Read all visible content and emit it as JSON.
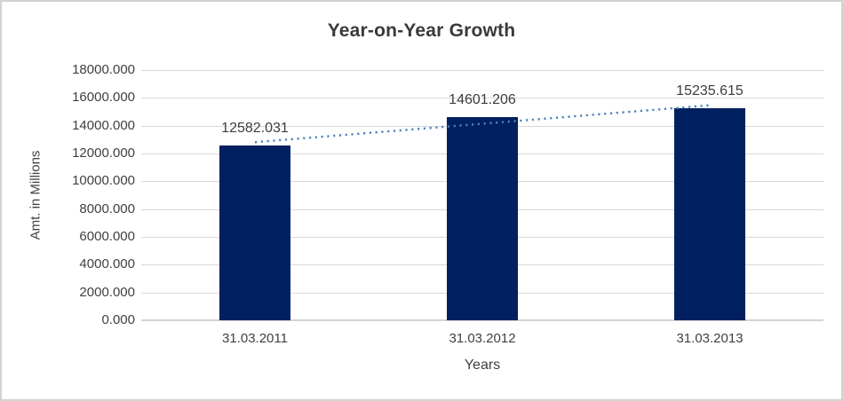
{
  "chart_data": {
    "type": "bar",
    "title": "Year-on-Year Growth",
    "xlabel": "Years",
    "ylabel": "Amt. in Millions",
    "categories": [
      "31.03.2011",
      "31.03.2012",
      "31.03.2013"
    ],
    "values": [
      12582.031,
      14601.206,
      15235.615
    ],
    "data_labels": [
      "12582.031",
      "14601.206",
      "15235.615"
    ],
    "ylim": [
      0,
      18000
    ],
    "ytick_step": 2000,
    "ytick_labels": [
      "0.000",
      "2000.000",
      "4000.000",
      "6000.000",
      "8000.000",
      "10000.000",
      "12000.000",
      "14000.000",
      "16000.000",
      "18000.000"
    ],
    "grid": true,
    "legend": false,
    "trendline": {
      "type": "linear",
      "style": "dotted"
    }
  },
  "colors": {
    "bar": "#002060",
    "trendline": "#4e81bd",
    "gridline": "#d8d8d8",
    "axis_line": "#d4d4d4",
    "text": "#404040",
    "title": "#3a3a3a",
    "frame_border": "#d2d2d2",
    "background": "#ffffff"
  }
}
